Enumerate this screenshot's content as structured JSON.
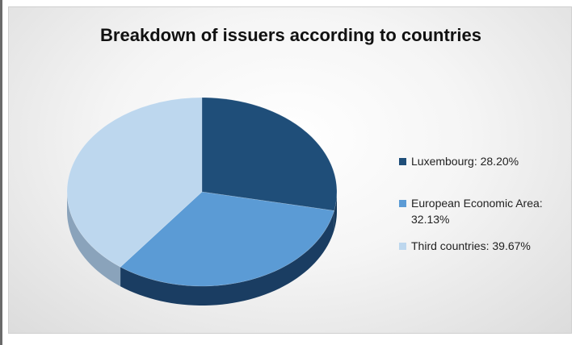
{
  "chart_data": {
    "type": "pie",
    "title": "Breakdown of issuers according to countries",
    "slices": [
      {
        "label": "Luxembourg: 28.20%",
        "value": 28.2,
        "color": "#1f4e79",
        "side_color": "#15385a"
      },
      {
        "label": "European Economic Area: 32.13%",
        "value": 32.13,
        "color": "#5b9bd5",
        "side_color": "#1a3d62"
      },
      {
        "label": "Third countries: 39.67%",
        "value": 39.67,
        "color": "#bdd7ee",
        "side_color": "#8aa3bb"
      }
    ],
    "legend_position": "right"
  }
}
